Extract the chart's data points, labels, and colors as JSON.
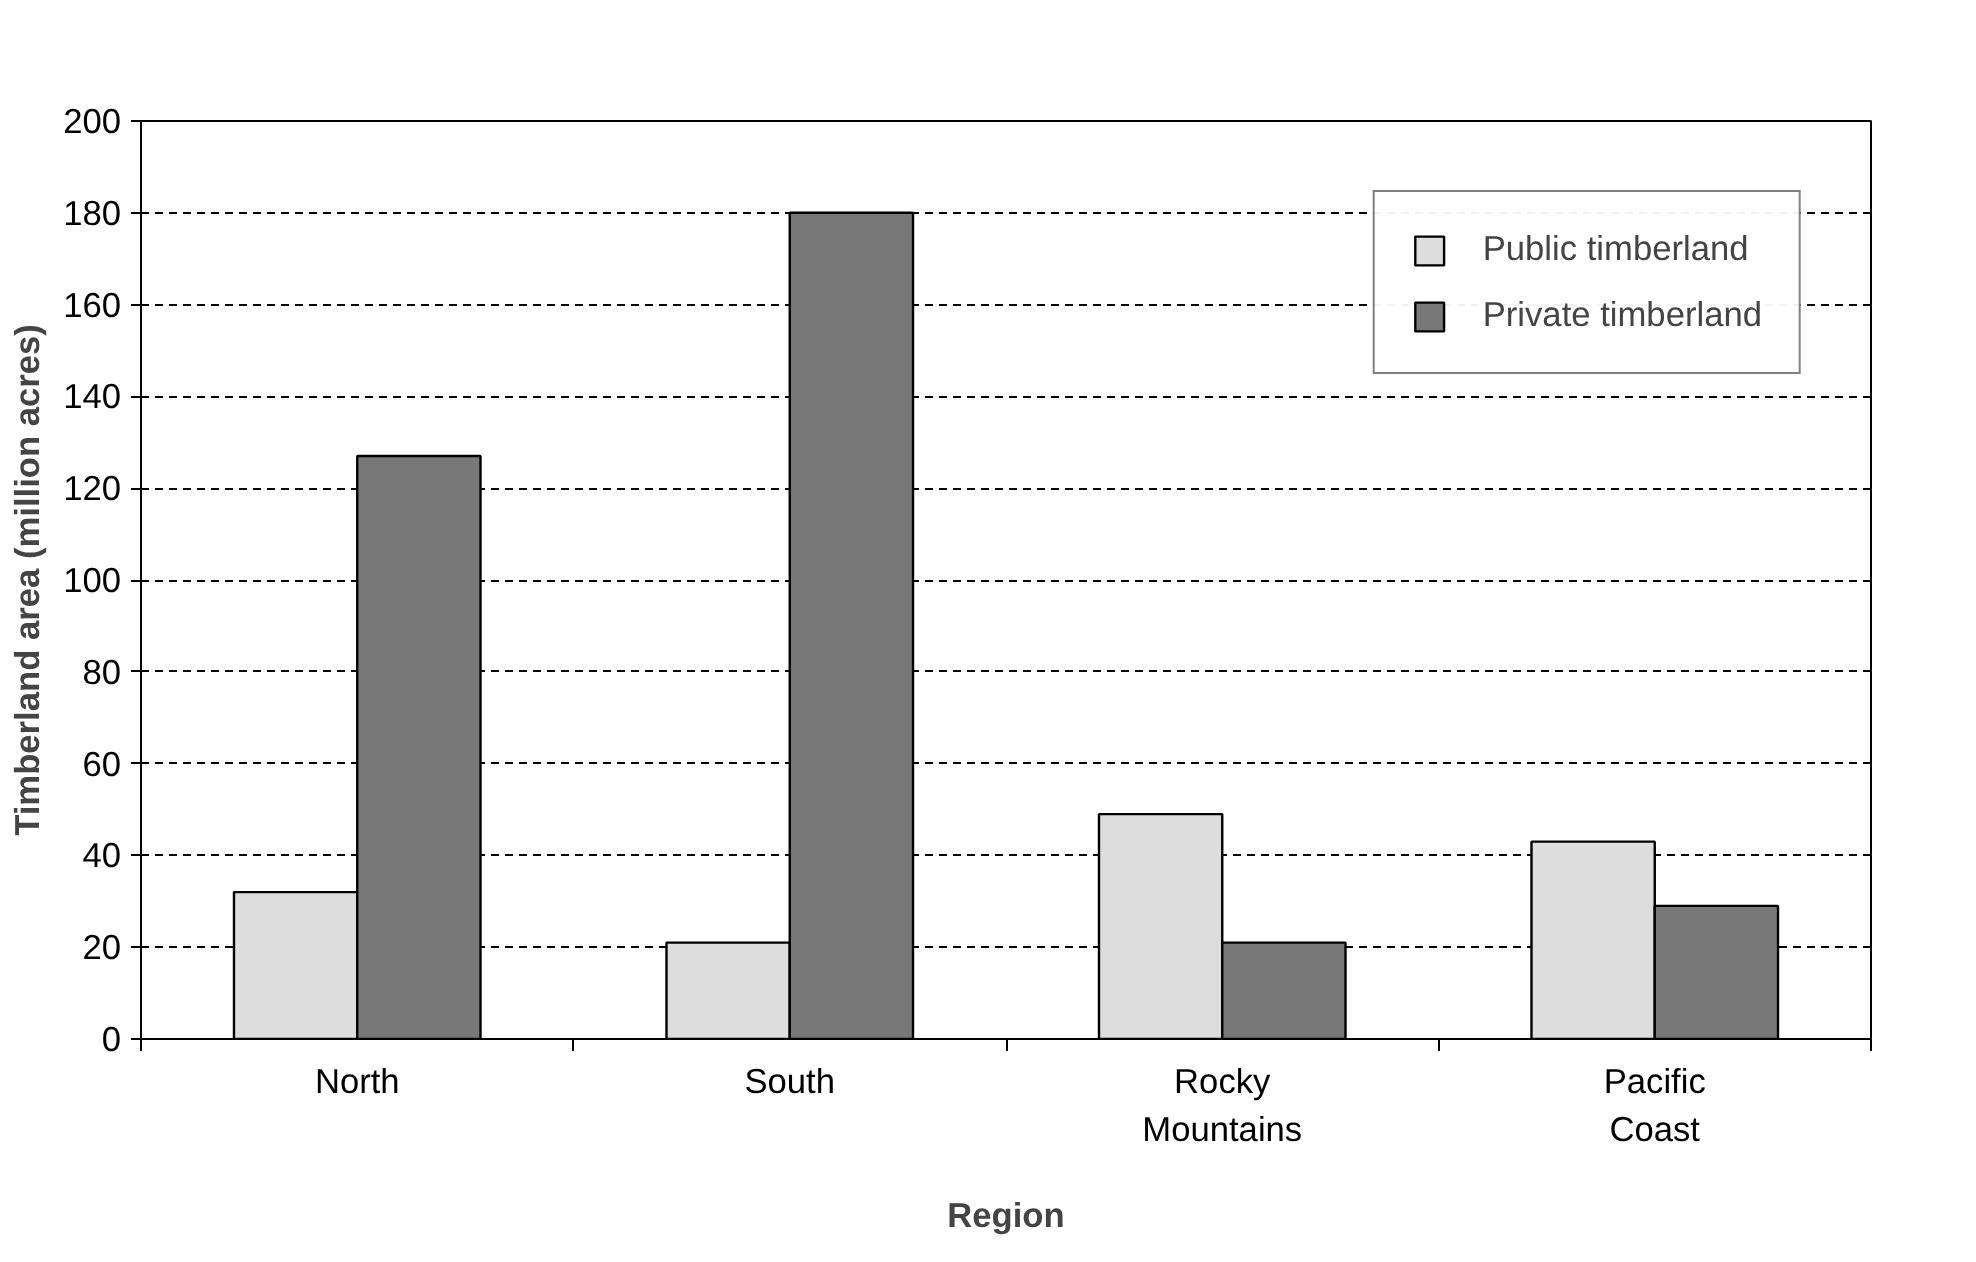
{
  "chart_data": {
    "type": "bar",
    "xlabel": "Region",
    "ylabel": "Timberland area (million acres)",
    "categories": [
      "North",
      "South",
      "Rocky\nMountains",
      "Pacific\nCoast"
    ],
    "series": [
      {
        "name": "Public timberland",
        "color": "#dddddd",
        "values": [
          32,
          21,
          49,
          43
        ]
      },
      {
        "name": "Private timberland",
        "color": "#787878",
        "values": [
          127,
          180,
          21,
          29
        ]
      }
    ],
    "ylim": [
      0,
      200
    ],
    "yticks": [
      0,
      20,
      40,
      60,
      80,
      100,
      120,
      140,
      160,
      180,
      200
    ],
    "grid": "y",
    "legend": "top right"
  }
}
